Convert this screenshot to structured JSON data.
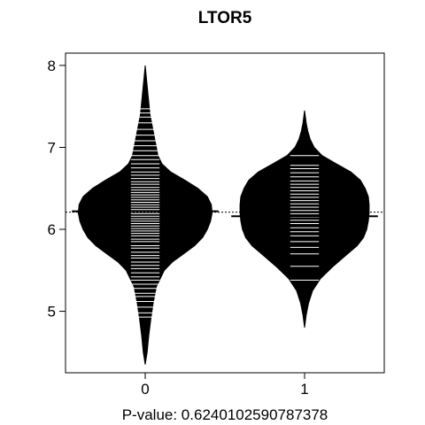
{
  "chart_data": {
    "type": "beanplot",
    "title": "LTOR5",
    "xlabel": "P-value: 0.6240102590787378",
    "ylabel": "",
    "categories": [
      "0",
      "1"
    ],
    "xlim": [
      -0.5,
      1.5
    ],
    "ylim": [
      4.25,
      8.15
    ],
    "yticks": [
      5,
      6,
      7,
      8
    ],
    "grid": false,
    "overall_mean": 6.21,
    "groups": [
      {
        "category": "0",
        "mean": 6.22,
        "range": [
          4.35,
          8.0
        ],
        "density_profile": [
          [
            4.35,
            0.0
          ],
          [
            4.5,
            0.012
          ],
          [
            4.7,
            0.022
          ],
          [
            4.9,
            0.035
          ],
          [
            5.1,
            0.05
          ],
          [
            5.3,
            0.07
          ],
          [
            5.5,
            0.12
          ],
          [
            5.6,
            0.17
          ],
          [
            5.7,
            0.24
          ],
          [
            5.8,
            0.31
          ],
          [
            5.9,
            0.36
          ],
          [
            6.0,
            0.39
          ],
          [
            6.1,
            0.41
          ],
          [
            6.2,
            0.42
          ],
          [
            6.3,
            0.415
          ],
          [
            6.4,
            0.39
          ],
          [
            6.5,
            0.33
          ],
          [
            6.6,
            0.25
          ],
          [
            6.7,
            0.16
          ],
          [
            6.8,
            0.105
          ],
          [
            6.9,
            0.08
          ],
          [
            7.0,
            0.07
          ],
          [
            7.1,
            0.06
          ],
          [
            7.2,
            0.05
          ],
          [
            7.3,
            0.04
          ],
          [
            7.4,
            0.03
          ],
          [
            7.6,
            0.02
          ],
          [
            7.8,
            0.01
          ],
          [
            8.0,
            0.0
          ]
        ],
        "observations": [
          4.93,
          4.98,
          5.05,
          5.12,
          5.18,
          5.22,
          5.28,
          5.33,
          5.38,
          5.42,
          5.47,
          5.52,
          5.56,
          5.6,
          5.65,
          5.68,
          5.72,
          5.77,
          5.8,
          5.85,
          5.88,
          5.92,
          5.95,
          5.98,
          6.01,
          6.04,
          6.07,
          6.1,
          6.13,
          6.16,
          6.19,
          6.21,
          6.24,
          6.27,
          6.3,
          6.33,
          6.36,
          6.39,
          6.42,
          6.45,
          6.48,
          6.51,
          6.55,
          6.58,
          6.62,
          6.66,
          6.7,
          6.75,
          6.8,
          6.85,
          6.9,
          6.96,
          7.02,
          7.08,
          7.15,
          7.22,
          7.3,
          7.37,
          7.42,
          7.47
        ]
      },
      {
        "category": "1",
        "mean": 6.16,
        "range": [
          4.8,
          7.45
        ],
        "density_profile": [
          [
            4.8,
            0.0
          ],
          [
            4.95,
            0.01
          ],
          [
            5.1,
            0.025
          ],
          [
            5.25,
            0.05
          ],
          [
            5.4,
            0.1
          ],
          [
            5.55,
            0.18
          ],
          [
            5.7,
            0.27
          ],
          [
            5.8,
            0.33
          ],
          [
            5.9,
            0.37
          ],
          [
            6.0,
            0.39
          ],
          [
            6.1,
            0.4
          ],
          [
            6.2,
            0.405
          ],
          [
            6.3,
            0.405
          ],
          [
            6.4,
            0.4
          ],
          [
            6.5,
            0.38
          ],
          [
            6.6,
            0.35
          ],
          [
            6.7,
            0.29
          ],
          [
            6.8,
            0.2
          ],
          [
            6.9,
            0.11
          ],
          [
            7.0,
            0.06
          ],
          [
            7.1,
            0.035
          ],
          [
            7.2,
            0.02
          ],
          [
            7.3,
            0.01
          ],
          [
            7.45,
            0.0
          ]
        ],
        "observations": [
          5.38,
          5.55,
          5.7,
          5.78,
          5.85,
          5.92,
          5.97,
          6.02,
          6.07,
          6.11,
          6.15,
          6.19,
          6.23,
          6.27,
          6.31,
          6.35,
          6.39,
          6.43,
          6.47,
          6.51,
          6.55,
          6.59,
          6.64,
          6.69,
          6.74,
          6.78,
          6.9
        ]
      }
    ]
  }
}
